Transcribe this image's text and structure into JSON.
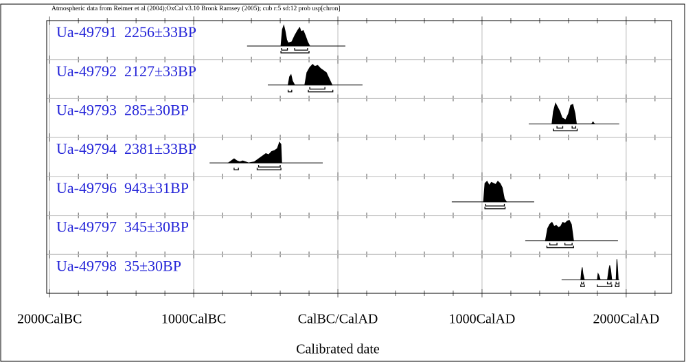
{
  "chart_data": {
    "type": "multiplot",
    "title": "Atmospheric data from Reimer et al (2004);OxCal v3.10 Bronk Ramsey (2005); cub r:5 sd:12 prob usp[chron]",
    "xlabel": "Calibrated date",
    "xlim": [
      -2020,
      2315
    ],
    "xticks": [
      {
        "value": -2000,
        "label": "2000CalBC"
      },
      {
        "value": -1000,
        "label": "1000CalBC"
      },
      {
        "value": 0,
        "label": "CalBC/CalAD"
      },
      {
        "value": 1000,
        "label": "1000CalAD"
      },
      {
        "value": 2000,
        "label": "2000CalAD"
      }
    ],
    "xminor": [
      -1800,
      -1600,
      -1400,
      -1200,
      -800,
      -600,
      -400,
      -200,
      200,
      400,
      600,
      800,
      1200,
      1400,
      1600,
      1800,
      2200
    ],
    "grid": true,
    "color": "#000000",
    "samples": [
      {
        "name": "Ua-49791  2256±33BP",
        "range": [
          -630,
          52
        ],
        "x": [
          -395,
          -385,
          -375,
          -365,
          -355,
          -345,
          -320,
          -300,
          -280,
          -265,
          -255,
          -240,
          -225,
          -210,
          -195
        ],
        "p": [
          0,
          0.8,
          1,
          0.7,
          0.3,
          0.15,
          0.2,
          0.5,
          0.75,
          0.9,
          0.7,
          0.75,
          0.5,
          0.2,
          0
        ],
        "sigma1": [
          [
            -390,
            -350
          ],
          [
            -300,
            -210
          ]
        ],
        "sigma2": [
          [
            -395,
            -200
          ]
        ]
      },
      {
        "name": "Ua-49792  2127±33BP",
        "range": [
          -486,
          171
        ],
        "x": [
          -345,
          -335,
          -325,
          -315,
          -300,
          -230,
          -215,
          -195,
          -175,
          -160,
          -140,
          -120,
          -100,
          -80,
          -60,
          -40
        ],
        "p": [
          0,
          0.4,
          0.5,
          0.2,
          0,
          0,
          0.6,
          0.85,
          1,
          0.9,
          0.95,
          0.8,
          0.7,
          0.6,
          0.3,
          0
        ],
        "sigma1": [
          [
            -195,
            -90
          ]
        ],
        "sigma2": [
          [
            -345,
            -320
          ],
          [
            -205,
            -35
          ]
        ]
      },
      {
        "name": "Ua-49793  285±30BP",
        "range": [
          1324,
          1952
        ],
        "x": [
          1485,
          1495,
          1510,
          1525,
          1540,
          1555,
          1580,
          1600,
          1615,
          1630,
          1645,
          1655,
          1760,
          1770,
          1780
        ],
        "p": [
          0,
          0.6,
          1,
          0.8,
          0.6,
          0.3,
          0.2,
          0.5,
          0.9,
          0.95,
          0.5,
          0,
          0,
          0.1,
          0
        ],
        "sigma1": [
          [
            1520,
            1560
          ],
          [
            1625,
            1650
          ]
        ],
        "sigma2": [
          [
            1495,
            1660
          ]
        ]
      },
      {
        "name": "Ua-49794  2381±33BP",
        "range": [
          -890,
          -105
        ],
        "x": [
          -760,
          -740,
          -720,
          -700,
          -680,
          -660,
          -640,
          -620,
          -580,
          -550,
          -520,
          -500,
          -480,
          -460,
          -440,
          -420,
          -405,
          -395,
          -390
        ],
        "p": [
          0,
          0.1,
          0.2,
          0.1,
          0.05,
          0.1,
          0.05,
          0,
          0.05,
          0.2,
          0.35,
          0.45,
          0.4,
          0.55,
          0.6,
          0.7,
          1,
          0.9,
          0
        ],
        "sigma1": [
          [
            -550,
            -400
          ]
        ],
        "sigma2": [
          [
            -720,
            -690
          ],
          [
            -560,
            -395
          ]
        ]
      },
      {
        "name": "Ua-49796  943±31BP",
        "range": [
          790,
          1362
        ],
        "x": [
          1010,
          1020,
          1035,
          1050,
          1065,
          1080,
          1095,
          1110,
          1125,
          1140,
          1155,
          1170
        ],
        "p": [
          0,
          0.9,
          1,
          0.8,
          0.95,
          0.9,
          0.85,
          1,
          0.9,
          0.7,
          0.15,
          0
        ],
        "sigma1": [
          [
            1025,
            1155
          ]
        ],
        "sigma2": [
          [
            1020,
            1160
          ]
        ]
      },
      {
        "name": "Ua-49797  345±30BP",
        "range": [
          1300,
          1943
        ],
        "x": [
          1440,
          1455,
          1470,
          1485,
          1500,
          1515,
          1530,
          1545,
          1560,
          1575,
          1590,
          1605,
          1620,
          1635
        ],
        "p": [
          0,
          0.6,
          0.8,
          0.9,
          0.7,
          0.75,
          0.65,
          0.7,
          0.9,
          0.85,
          0.95,
          1,
          0.8,
          0
        ],
        "sigma1": [
          [
            1470,
            1520
          ],
          [
            1575,
            1625
          ]
        ],
        "sigma2": [
          [
            1450,
            1635
          ]
        ]
      },
      {
        "name": "Ua-49798  35±30BP",
        "range": [
          1552,
          1952
        ],
        "x": [
          1685,
          1690,
          1695,
          1700,
          1710,
          1800,
          1805,
          1812,
          1820,
          1870,
          1880,
          1886,
          1892,
          1900,
          1930,
          1936,
          1940,
          1945
        ],
        "p": [
          0,
          0.4,
          0.6,
          0.3,
          0,
          0,
          0.3,
          0.2,
          0,
          0,
          0.5,
          0.7,
          0.5,
          0,
          0,
          1,
          0.6,
          0
        ],
        "sigma1": [
          [
            1690,
            1705
          ],
          [
            1870,
            1895
          ],
          [
            1930,
            1950
          ]
        ],
        "sigma2": [
          [
            1685,
            1710
          ],
          [
            1800,
            1900
          ],
          [
            1925,
            1950
          ]
        ]
      }
    ]
  }
}
